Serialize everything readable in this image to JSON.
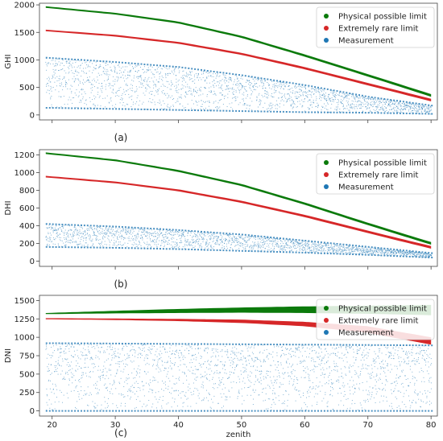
{
  "legend": {
    "physical": "Physical possible limit",
    "extreme": "Extremely rare limit",
    "measurement": "Measurement"
  },
  "colors": {
    "physical": "#0b7a0b",
    "extreme": "#d62728",
    "measurement": "#1f77b4"
  },
  "chart_data": [
    {
      "type": "scatter",
      "caption": "(a)",
      "ylabel": "GHI",
      "xlabel": "",
      "xlim": [
        18,
        81
      ],
      "ylim": [
        -90,
        2030
      ],
      "x_ticks": [
        20,
        30,
        40,
        50,
        60,
        70,
        80
      ],
      "y_ticks": [
        0,
        500,
        1000,
        1500,
        2000
      ],
      "x_tick_labels_shown": false,
      "legend_position": "top-right",
      "series": [
        {
          "name": "Physical possible limit",
          "x": [
            19,
            30,
            40,
            50,
            60,
            70,
            80
          ],
          "y": [
            1960,
            1840,
            1680,
            1420,
            1080,
            720,
            355
          ]
        },
        {
          "name": "Extremely rare limit",
          "x": [
            19,
            30,
            40,
            50,
            60,
            70,
            80
          ],
          "y": [
            1535,
            1440,
            1310,
            1110,
            850,
            560,
            270
          ]
        },
        {
          "name": "Measurement",
          "x": [
            19,
            30,
            40,
            50,
            60,
            70,
            80
          ],
          "y_min": [
            130,
            110,
            90,
            70,
            50,
            40,
            20
          ],
          "y_max": [
            1040,
            960,
            870,
            720,
            540,
            330,
            170
          ]
        }
      ]
    },
    {
      "type": "scatter",
      "caption": "(b)",
      "ylabel": "DHI",
      "xlabel": "",
      "xlim": [
        18,
        81
      ],
      "ylim": [
        -60,
        1260
      ],
      "x_ticks": [
        20,
        30,
        40,
        50,
        60,
        70,
        80
      ],
      "y_ticks": [
        0,
        200,
        400,
        600,
        800,
        1000,
        1200
      ],
      "x_tick_labels_shown": false,
      "legend_position": "top-right",
      "series": [
        {
          "name": "Physical possible limit",
          "x": [
            19,
            30,
            40,
            50,
            60,
            70,
            80
          ],
          "y": [
            1220,
            1140,
            1020,
            860,
            650,
            420,
            200
          ]
        },
        {
          "name": "Extremely rare limit",
          "x": [
            19,
            30,
            40,
            50,
            60,
            70,
            80
          ],
          "y": [
            955,
            890,
            800,
            670,
            510,
            330,
            155
          ]
        },
        {
          "name": "Measurement",
          "x": [
            19,
            30,
            40,
            50,
            60,
            70,
            80
          ],
          "y_min": [
            160,
            150,
            135,
            115,
            95,
            70,
            40
          ],
          "y_max": [
            420,
            390,
            350,
            300,
            230,
            160,
            90
          ]
        }
      ]
    },
    {
      "type": "scatter",
      "caption": "(c)",
      "ylabel": "DNI",
      "xlabel": "zenith",
      "xlim": [
        18,
        81
      ],
      "ylim": [
        -70,
        1570
      ],
      "x_ticks": [
        20,
        30,
        40,
        50,
        60,
        70,
        80
      ],
      "y_ticks": [
        0,
        250,
        500,
        750,
        1000,
        1250,
        1500
      ],
      "x_tick_labels_shown": true,
      "legend_position": "top-right",
      "series": [
        {
          "name": "Physical possible limit",
          "x": [
            19,
            30,
            40,
            50,
            60,
            70,
            80
          ],
          "y_min": [
            1315,
            1325,
            1330,
            1335,
            1330,
            1320,
            1300
          ],
          "y_max": [
            1330,
            1360,
            1385,
            1405,
            1420,
            1430,
            1440
          ]
        },
        {
          "name": "Extremely rare limit",
          "x": [
            19,
            30,
            40,
            50,
            60,
            70,
            80
          ],
          "y_min": [
            1245,
            1235,
            1220,
            1195,
            1150,
            1060,
            900
          ],
          "y_max": [
            1260,
            1255,
            1250,
            1240,
            1210,
            1150,
            1000
          ]
        },
        {
          "name": "Measurement",
          "x": [
            19,
            30,
            40,
            50,
            60,
            70,
            80
          ],
          "y_min": [
            0,
            0,
            0,
            0,
            0,
            0,
            0
          ],
          "y_max": [
            920,
            915,
            910,
            905,
            900,
            895,
            890
          ]
        }
      ]
    }
  ]
}
